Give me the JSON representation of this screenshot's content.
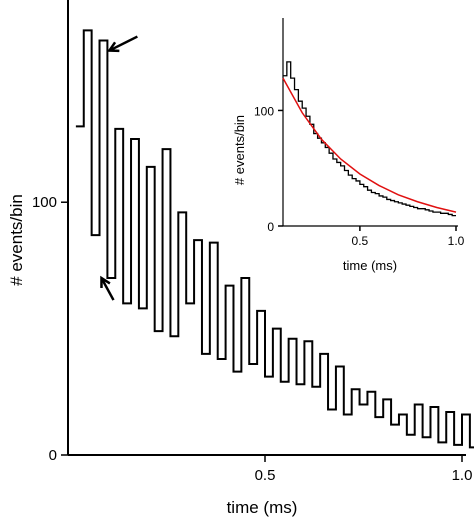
{
  "chart_data": [
    {
      "type": "histogram",
      "xlabel": "time (ms)",
      "ylabel": "# events/bin",
      "xlim": [
        0.0,
        1.0
      ],
      "ylim": [
        0,
        180
      ],
      "xticks": [
        0.5,
        1.0
      ],
      "xtick_labels": [
        "0.5",
        "1.0"
      ],
      "yticks": [
        0,
        100
      ],
      "ytick_labels": [
        "0",
        "100"
      ],
      "bin_width": 0.02,
      "x_start": 0.02,
      "values": [
        130,
        168,
        87,
        164,
        70,
        129,
        60,
        125,
        58,
        114,
        49,
        121,
        47,
        96,
        60,
        85,
        40,
        84,
        38,
        67,
        33,
        70,
        36,
        57,
        31,
        50,
        29,
        46,
        28,
        45,
        27,
        40,
        18,
        35,
        16,
        26,
        20,
        25,
        15,
        22,
        12,
        16,
        8,
        20,
        7,
        19,
        5,
        17,
        4,
        16,
        3,
        15,
        2,
        14,
        8
      ],
      "stroke_color": "#000000",
      "annotations": [
        {
          "type": "arrow",
          "points_to_x": 0.105,
          "points_to_y": 160
        },
        {
          "type": "arrow",
          "points_to_x": 0.085,
          "points_to_y": 70
        }
      ]
    },
    {
      "type": "histogram",
      "role": "inset",
      "xlabel": "time (ms)",
      "ylabel": "# events/bin",
      "xlim": [
        0.1,
        1.0
      ],
      "ylim": [
        0,
        180
      ],
      "xticks": [
        0.5,
        1.0
      ],
      "xtick_labels": [
        "0.5",
        "1.0"
      ],
      "yticks": [
        0,
        100
      ],
      "ytick_labels": [
        "0",
        "100"
      ],
      "bin_width": 0.02,
      "x_start": 0.1,
      "values": [
        130,
        142,
        128,
        118,
        108,
        102,
        95,
        88,
        80,
        76,
        72,
        68,
        63,
        58,
        55,
        52,
        48,
        44,
        41,
        39,
        36,
        34,
        31,
        29,
        28,
        26,
        25,
        23,
        22,
        21,
        20,
        19,
        18,
        17,
        16,
        15,
        15,
        14,
        13,
        12,
        12,
        11,
        11,
        10,
        9
      ],
      "stroke_color": "#000000",
      "fit": {
        "type": "exponential",
        "color": "#e01010",
        "x": [
          0.1,
          0.2,
          0.3,
          0.4,
          0.5,
          0.6,
          0.7,
          0.8,
          0.9,
          1.0
        ],
        "y": [
          128,
          98,
          75,
          58,
          45,
          35,
          27,
          21,
          16,
          12
        ]
      }
    }
  ]
}
